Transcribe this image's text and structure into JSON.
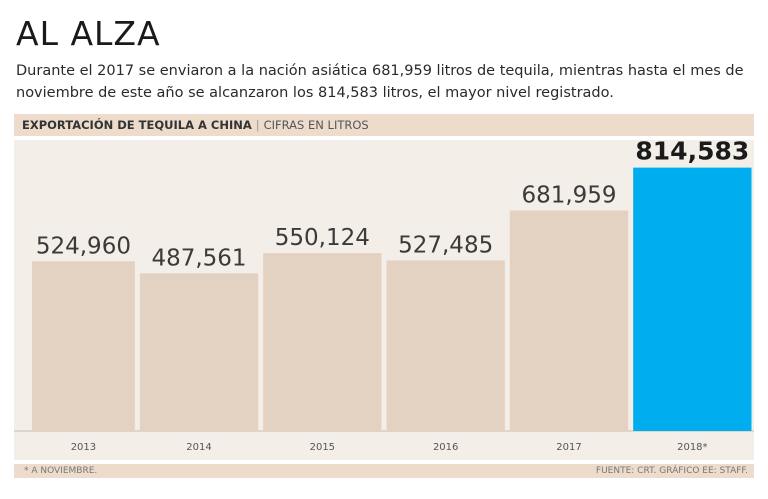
{
  "header": {
    "title": "AL ALZA",
    "subtitle": "Durante el 2017 se enviaron a la nación asiática 681,959 litros de tequila, mientras hasta el mes de noviembre de este año se alcanzaron los 814,583 litros, el mayor nivel registrado."
  },
  "banner": {
    "main": "EXPORTACIÓN DE TEQUILA A CHINA",
    "separator": "|",
    "sub": "CIFRAS EN LITROS"
  },
  "footer": {
    "note": "* A NOVIEMBRE.",
    "source": "FUENTE: CRT. GRÁFICO EE: STAFF."
  },
  "colors": {
    "bar": "#e3d2c1",
    "highlight": "#00aeef",
    "background": "#f4eee8"
  },
  "chart_data": {
    "type": "bar",
    "title": "EXPORTACIÓN DE TEQUILA A CHINA",
    "ylabel": "CIFRAS EN LITROS",
    "categories": [
      "2013",
      "2014",
      "2015",
      "2016",
      "2017",
      "2018*"
    ],
    "values": [
      524960,
      487561,
      550124,
      527485,
      681959,
      814583
    ],
    "labels": [
      "524,960",
      "487,561",
      "550,124",
      "527,485",
      "681,959",
      "814,583"
    ],
    "highlight_index": 5,
    "ylim": [
      0,
      900000
    ]
  }
}
